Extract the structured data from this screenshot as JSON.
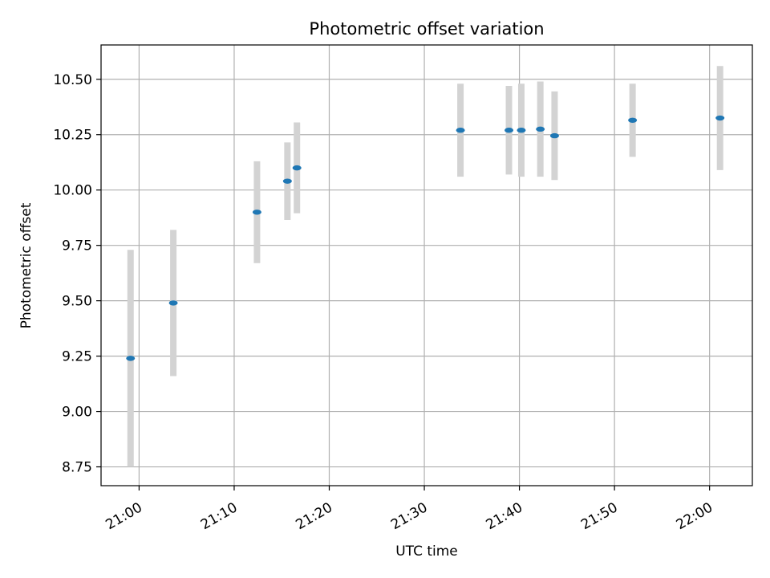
{
  "chart_data": {
    "type": "scatter",
    "title": "Photometric offset variation",
    "xlabel": "UTC time",
    "ylabel": "Photometric offset",
    "xlim": [
      "20:56:00",
      "22:04:30"
    ],
    "ylim": [
      8.665,
      10.655
    ],
    "xticks": [
      "21:00",
      "21:10",
      "21:20",
      "21:30",
      "21:40",
      "21:50",
      "22:00"
    ],
    "yticks": [
      "8.75",
      "9.00",
      "9.25",
      "9.50",
      "9.75",
      "10.00",
      "10.25",
      "10.50"
    ],
    "grid": true,
    "colors": {
      "marker": "#1f77b4",
      "errorbar": "#d3d3d3",
      "grid": "#b0b0b0"
    },
    "points": [
      {
        "x": "20:59:06",
        "y": 9.24,
        "err": 0.49
      },
      {
        "x": "21:03:36",
        "y": 9.49,
        "err": 0.33
      },
      {
        "x": "21:12:24",
        "y": 9.9,
        "err": 0.23
      },
      {
        "x": "21:15:36",
        "y": 10.04,
        "err": 0.175
      },
      {
        "x": "21:16:36",
        "y": 10.1,
        "err": 0.205
      },
      {
        "x": "21:33:48",
        "y": 10.27,
        "err": 0.21
      },
      {
        "x": "21:38:54",
        "y": 10.27,
        "err": 0.2
      },
      {
        "x": "21:40:12",
        "y": 10.27,
        "err": 0.21
      },
      {
        "x": "21:42:12",
        "y": 10.275,
        "err": 0.215
      },
      {
        "x": "21:43:42",
        "y": 10.245,
        "err": 0.2
      },
      {
        "x": "21:51:54",
        "y": 10.315,
        "err": 0.165
      },
      {
        "x": "22:01:06",
        "y": 10.325,
        "err": 0.235
      }
    ]
  }
}
